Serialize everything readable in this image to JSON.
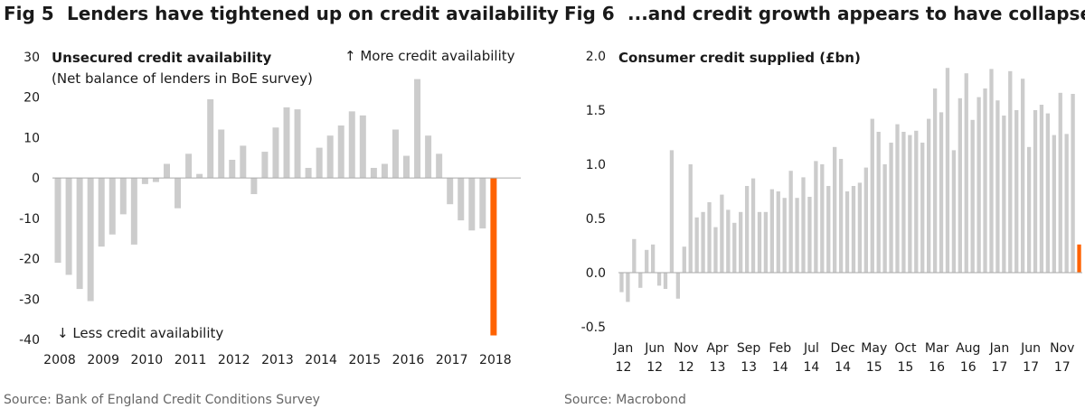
{
  "colors": {
    "bar": "#cccccc",
    "highlight": "#ff6200",
    "axis": "#aaaaaa",
    "text": "#1a1a1a",
    "source": "#666666"
  },
  "left": {
    "fig_label": "Fig 5",
    "title": "Lenders have tightened up on credit availability",
    "source": "Source: Bank of England Credit Conditions Survey",
    "chart_data": {
      "type": "bar",
      "title": "Unsecured credit availability",
      "subtitle": "(Net balance of lenders in BoE survey)",
      "annotation_up": "↑ More credit availability",
      "annotation_down": "↓ Less credit availability",
      "ylim": [
        -40,
        30
      ],
      "yticks": [
        30,
        20,
        10,
        0,
        -10,
        -20,
        -30,
        -40
      ],
      "xlim": [
        2008,
        2018.75
      ],
      "xticks": [
        "2008",
        "2009",
        "2010",
        "2011",
        "2012",
        "2013",
        "2014",
        "2015",
        "2016",
        "2017",
        "2018"
      ],
      "x": [
        2008.0,
        2008.25,
        2008.5,
        2008.75,
        2009.0,
        2009.25,
        2009.5,
        2009.75,
        2010.0,
        2010.25,
        2010.5,
        2010.75,
        2011.0,
        2011.25,
        2011.5,
        2011.75,
        2012.0,
        2012.25,
        2012.5,
        2012.75,
        2013.0,
        2013.25,
        2013.5,
        2013.75,
        2014.0,
        2014.25,
        2014.5,
        2014.75,
        2015.0,
        2015.25,
        2015.5,
        2015.75,
        2016.0,
        2016.25,
        2016.5,
        2016.75,
        2017.0,
        2017.25,
        2017.5,
        2017.75,
        2018.0
      ],
      "values": [
        -21,
        -24,
        -27.5,
        -30.5,
        -17,
        -14,
        -9,
        -16.5,
        -1.5,
        -1,
        3.5,
        -7.5,
        6,
        1,
        19.5,
        12,
        4.5,
        8,
        -4,
        6.5,
        12.5,
        17.5,
        17,
        2.5,
        7.5,
        10.5,
        13,
        16.5,
        15.5,
        2.5,
        3.5,
        12,
        5.5,
        24.5,
        10.5,
        6,
        -6.5,
        -10.5,
        -13,
        -12.5,
        -39
      ],
      "highlight_index": 40
    }
  },
  "right": {
    "fig_label": "Fig 6",
    "title": "...and credit growth appears to have collapsed",
    "source": "Source: Macrobond",
    "chart_data": {
      "type": "bar",
      "title": "Consumer credit supplied (£bn)",
      "ylim": [
        -0.5,
        2.0
      ],
      "yticks": [
        "2.0",
        "1.5",
        "1.0",
        "0.5",
        "0.0",
        "-0.5"
      ],
      "yticks_values": [
        2.0,
        1.5,
        1.0,
        0.5,
        0.0,
        -0.5
      ],
      "xticks": [
        {
          "month": "Jan",
          "year": "12",
          "index": 0
        },
        {
          "month": "Jun",
          "year": "12",
          "index": 5
        },
        {
          "month": "Nov",
          "year": "12",
          "index": 10
        },
        {
          "month": "Apr",
          "year": "13",
          "index": 15
        },
        {
          "month": "Sep",
          "year": "13",
          "index": 20
        },
        {
          "month": "Feb",
          "year": "14",
          "index": 25
        },
        {
          "month": "Jul",
          "year": "14",
          "index": 30
        },
        {
          "month": "Dec",
          "year": "14",
          "index": 35
        },
        {
          "month": "May",
          "year": "15",
          "index": 40
        },
        {
          "month": "Oct",
          "year": "15",
          "index": 45
        },
        {
          "month": "Mar",
          "year": "16",
          "index": 50
        },
        {
          "month": "Aug",
          "year": "16",
          "index": 55
        },
        {
          "month": "Jan",
          "year": "17",
          "index": 60
        },
        {
          "month": "Jun",
          "year": "17",
          "index": 65
        },
        {
          "month": "Nov",
          "year": "17",
          "index": 70
        }
      ],
      "values": [
        -0.18,
        -0.27,
        0.31,
        -0.14,
        0.21,
        0.26,
        -0.12,
        -0.15,
        1.13,
        -0.24,
        0.24,
        1.0,
        0.51,
        0.56,
        0.65,
        0.42,
        0.72,
        0.58,
        0.46,
        0.56,
        0.8,
        0.87,
        0.56,
        0.56,
        0.77,
        0.75,
        0.69,
        0.94,
        0.69,
        0.88,
        0.7,
        1.03,
        1.0,
        0.8,
        1.16,
        1.05,
        0.75,
        0.8,
        0.83,
        0.97,
        1.42,
        1.3,
        1.0,
        1.2,
        1.37,
        1.3,
        1.27,
        1.31,
        1.2,
        1.42,
        1.7,
        1.48,
        1.89,
        1.13,
        1.61,
        1.84,
        1.41,
        1.62,
        1.7,
        1.88,
        1.59,
        1.45,
        1.86,
        1.5,
        1.79,
        1.16,
        1.5,
        1.55,
        1.47,
        1.27,
        1.66,
        1.28,
        1.65,
        0.26
      ],
      "highlight_index": 73
    }
  }
}
